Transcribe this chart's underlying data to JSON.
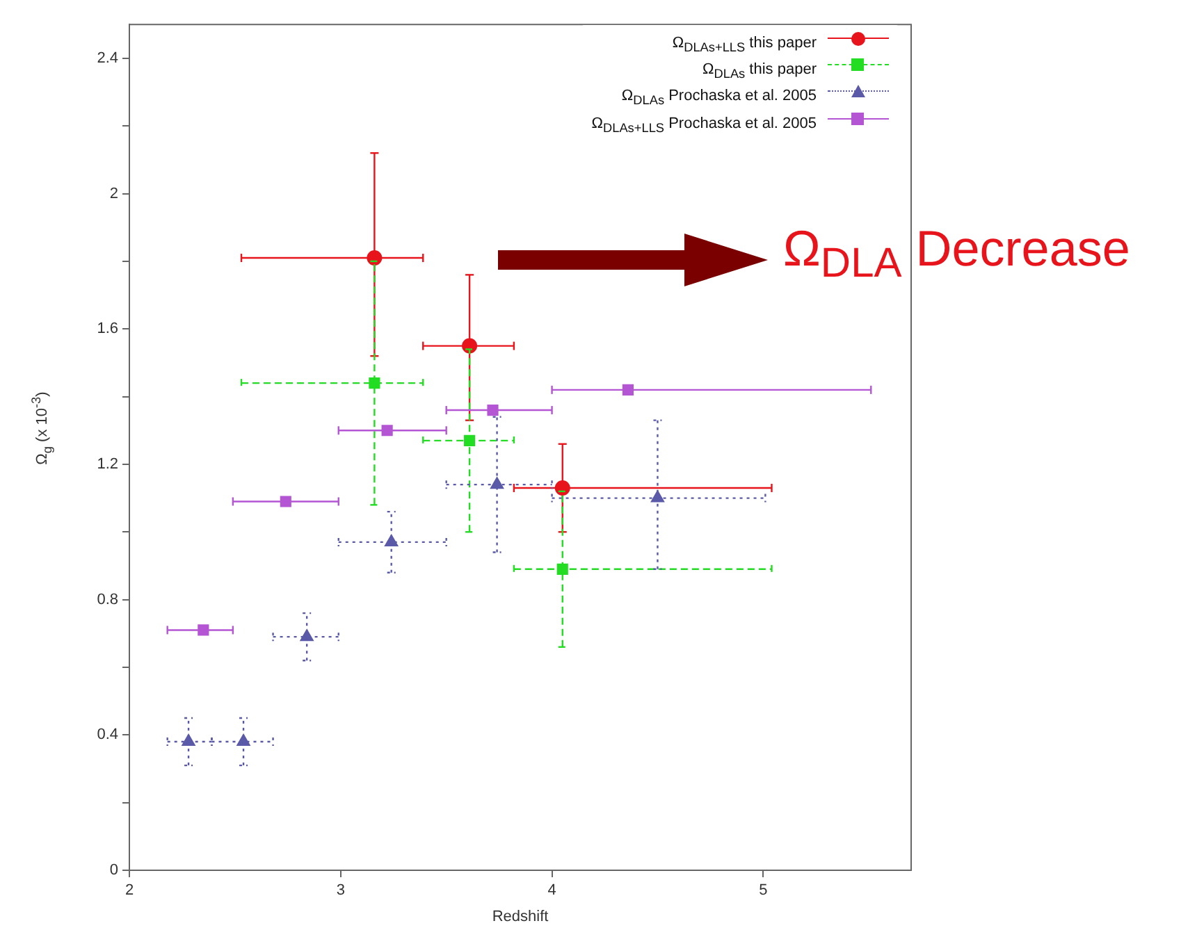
{
  "chart_data": {
    "type": "scatter",
    "xlabel": "Redshift",
    "ylabel": "Ω$_{g}$ (x 10$^{-3}$)",
    "xlim": [
      2,
      5.7
    ],
    "xticks": [
      2,
      3,
      4,
      5
    ],
    "ylim": [
      0,
      2.5
    ],
    "yticks": [
      0,
      {
        "value": 0.2,
        "label": null
      },
      0.4,
      {
        "value": 0.6,
        "label": null
      },
      0.8,
      {
        "value": 1.0,
        "label": null
      },
      1.2,
      {
        "value": 1.4,
        "label": null
      },
      1.6,
      {
        "value": 1.8,
        "label": null
      },
      2,
      {
        "value": 2.2,
        "label": null
      },
      2.4
    ],
    "grid": false,
    "legend": "top right",
    "annotations": [
      "Ω$_{DLA}$ Decrease"
    ],
    "series": [
      {
        "name": "Ω$_{DLAs+LLS}$ this paper",
        "color": "#e8141c",
        "marker": "circle",
        "line_style": "solid",
        "x": [
          3.16,
          3.61,
          4.05
        ],
        "values": [
          1.81,
          1.55,
          1.13
        ],
        "errors": [
          [
            1.52,
            2.12
          ],
          [
            1.33,
            1.76
          ],
          [
            1.0,
            1.26
          ]
        ],
        "xerrors": [
          [
            2.53,
            3.39
          ],
          [
            3.39,
            3.82
          ],
          [
            3.82,
            5.04
          ]
        ]
      },
      {
        "name": "Ω$_{DLAs}$ this paper",
        "color": "#22dd22",
        "marker": "square",
        "line_style": "dashed",
        "x": [
          3.16,
          3.61,
          4.05
        ],
        "values": [
          1.44,
          1.27,
          0.89
        ],
        "errors": [
          [
            1.08,
            1.8
          ],
          [
            1.0,
            1.54
          ],
          [
            0.66,
            1.12
          ]
        ],
        "xerrors": [
          [
            2.53,
            3.39
          ],
          [
            3.39,
            3.82
          ],
          [
            3.82,
            5.04
          ]
        ]
      },
      {
        "name": "Ω$_{DLAs}$ Prochaska et al. 2005",
        "color": "#5a5aa8",
        "marker": "triangle",
        "line_style": "dotted",
        "x": [
          2.28,
          2.54,
          2.84,
          3.24,
          3.74,
          4.5
        ],
        "values": [
          0.38,
          0.38,
          0.69,
          0.97,
          1.14,
          1.1
        ],
        "errors": [
          [
            0.31,
            0.45
          ],
          [
            0.31,
            0.45
          ],
          [
            0.62,
            0.76
          ],
          [
            0.88,
            1.06
          ],
          [
            0.94,
            1.34
          ],
          [
            0.89,
            1.33
          ]
        ],
        "xerrors": [
          [
            2.18,
            2.39
          ],
          [
            2.39,
            2.68
          ],
          [
            2.68,
            2.99
          ],
          [
            2.99,
            3.5
          ],
          [
            3.5,
            4.0
          ],
          [
            4.0,
            5.01
          ]
        ]
      },
      {
        "name": "Ω$_{DLAs+LLS}$ Prochaska et al. 2005",
        "color": "#b455d4",
        "marker": "square",
        "line_style": "solid",
        "x": [
          2.35,
          2.74,
          3.22,
          3.72,
          4.36
        ],
        "values": [
          0.71,
          1.09,
          1.3,
          1.36,
          1.42
        ],
        "xerrors": [
          [
            2.18,
            2.49
          ],
          [
            2.49,
            2.99
          ],
          [
            2.99,
            3.5
          ],
          [
            3.5,
            4.0
          ],
          [
            4.0,
            5.51
          ]
        ]
      }
    ]
  }
}
